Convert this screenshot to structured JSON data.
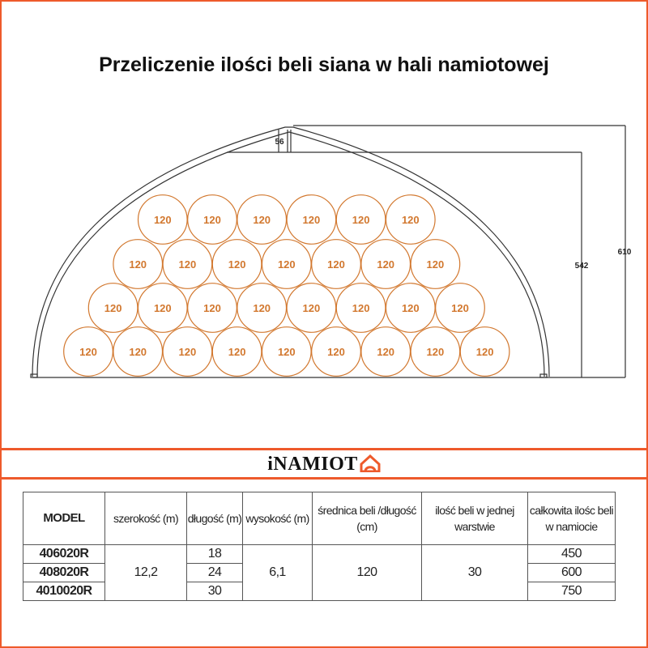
{
  "title": "Przeliczenie ilości beli siana w hali namiotowej",
  "diagram": {
    "dim_peak": "56",
    "dim_inner_height": "542",
    "dim_total_height": "610",
    "bale_label": "120",
    "bale_rows_bottom_to_top": [
      9,
      8,
      7,
      6
    ],
    "bale_color": "#d2782f",
    "line_color": "#333333"
  },
  "brand": {
    "logo_text": "iNAMIOT",
    "accent": "#ee5a2b"
  },
  "table": {
    "headers": [
      "MODEL",
      "szerokość (m)",
      "długość (m)",
      "wysokość (m)",
      "średnica beli /długość (cm)",
      "ilość beli w jednej warstwie",
      "całkowita ilośc beli w namiocie"
    ],
    "models": [
      "406020R",
      "408020R",
      "4010020R"
    ],
    "width": "12,2",
    "lengths": [
      "18",
      "24",
      "30"
    ],
    "height": "6,1",
    "bale_diameter": "120",
    "bales_per_layer": "30",
    "totals": [
      "450",
      "600",
      "750"
    ]
  }
}
